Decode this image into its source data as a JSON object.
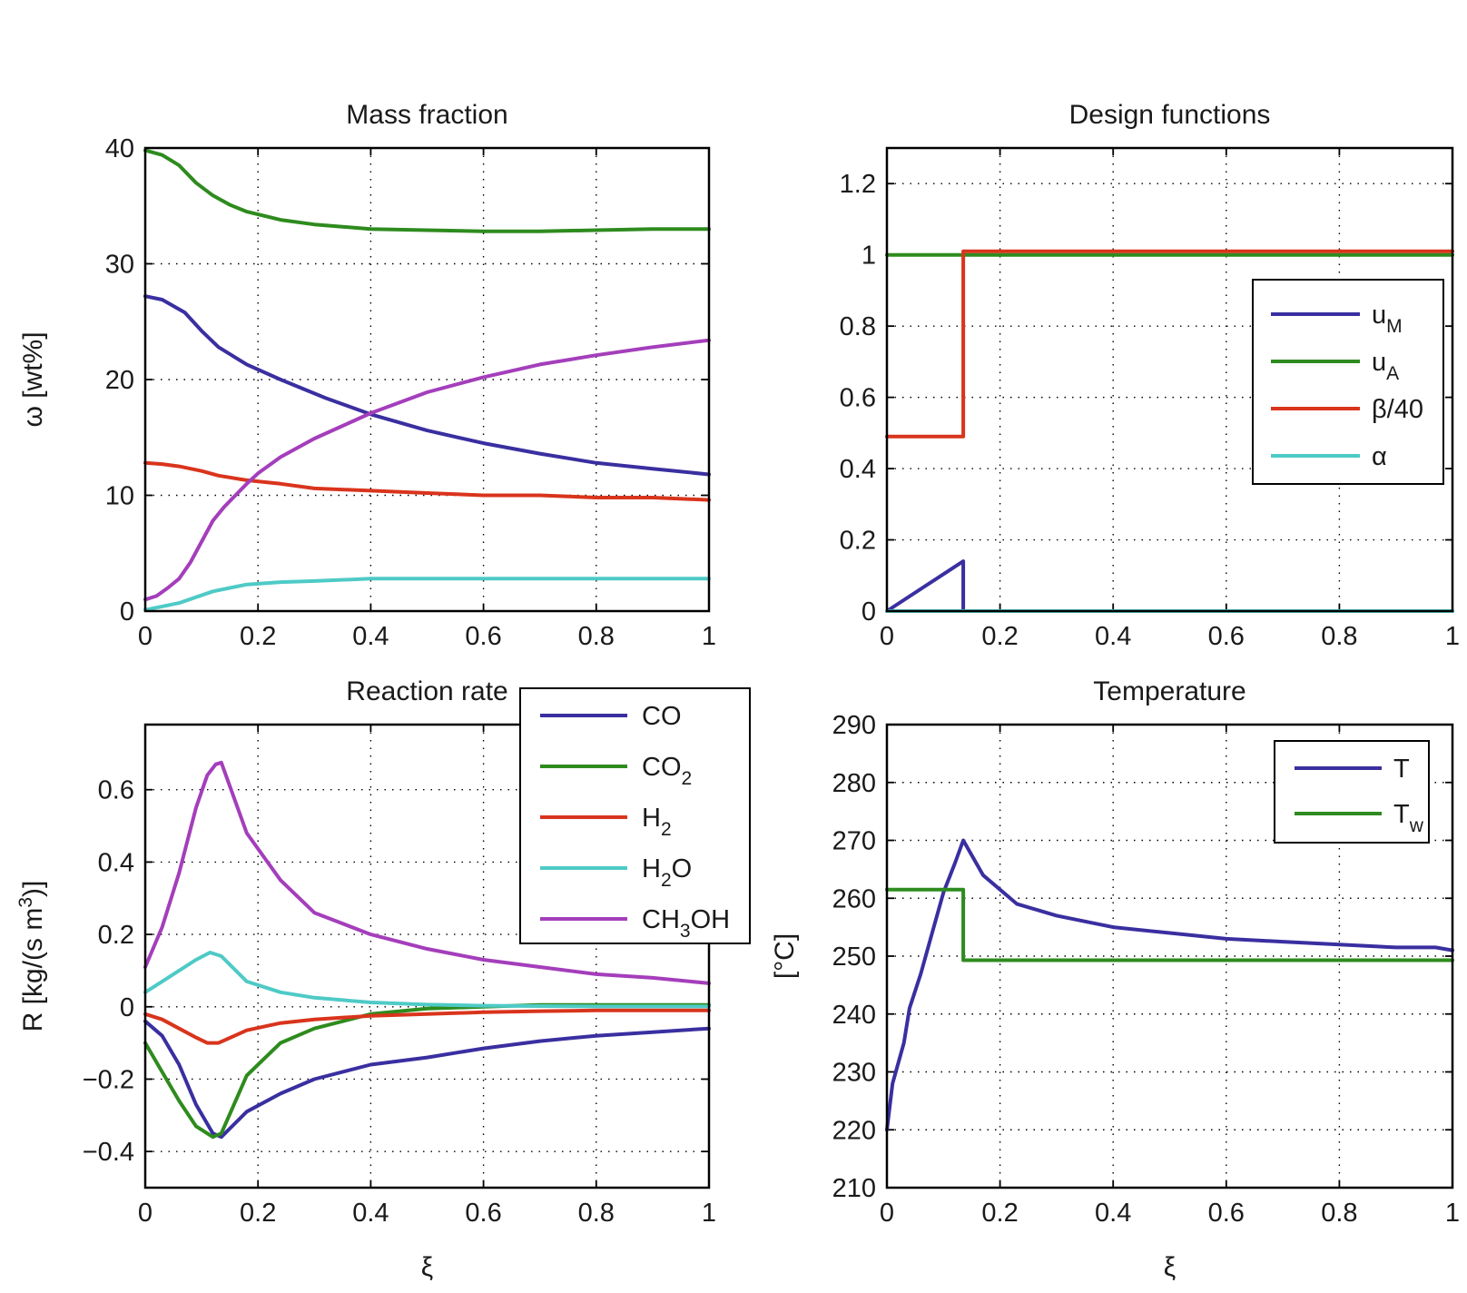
{
  "chart_data": [
    {
      "type": "line",
      "title": "Mass fraction",
      "xlabel": "",
      "ylabel": "ω [wt%]",
      "xlim": [
        0,
        1
      ],
      "ylim": [
        0,
        40
      ],
      "xticks": [
        "0",
        "0.2",
        "0.4",
        "0.6",
        "0.8",
        "1"
      ],
      "yticks": [
        "0",
        "10",
        "20",
        "30",
        "40"
      ],
      "grid": true,
      "legend": "none",
      "series": [
        {
          "color": "#3a2fa0",
          "x": [
            0,
            0.03,
            0.07,
            0.1,
            0.13,
            0.18,
            0.24,
            0.32,
            0.4,
            0.5,
            0.6,
            0.7,
            0.8,
            0.9,
            1.0
          ],
          "y": [
            27.2,
            26.9,
            25.8,
            24.2,
            22.8,
            21.3,
            20.0,
            18.4,
            17.0,
            15.6,
            14.5,
            13.6,
            12.8,
            12.3,
            11.8
          ]
        },
        {
          "color": "#2e8b1e",
          "x": [
            0,
            0.03,
            0.06,
            0.09,
            0.12,
            0.15,
            0.18,
            0.24,
            0.3,
            0.4,
            0.5,
            0.6,
            0.7,
            0.8,
            0.9,
            1.0
          ],
          "y": [
            39.8,
            39.4,
            38.5,
            37.0,
            35.9,
            35.1,
            34.5,
            33.8,
            33.4,
            33.0,
            32.9,
            32.8,
            32.8,
            32.9,
            33.0,
            33.0
          ]
        },
        {
          "color": "#d9341c",
          "x": [
            0,
            0.03,
            0.06,
            0.1,
            0.13,
            0.18,
            0.24,
            0.3,
            0.4,
            0.5,
            0.6,
            0.7,
            0.8,
            0.9,
            1.0
          ],
          "y": [
            12.8,
            12.7,
            12.5,
            12.1,
            11.7,
            11.3,
            11.0,
            10.6,
            10.4,
            10.2,
            10.0,
            10.0,
            9.8,
            9.8,
            9.6
          ]
        },
        {
          "color": "#4ecac6",
          "x": [
            0,
            0.03,
            0.06,
            0.09,
            0.12,
            0.15,
            0.18,
            0.24,
            0.3,
            0.4,
            0.5,
            0.6,
            0.7,
            0.8,
            0.9,
            1.0
          ],
          "y": [
            0.1,
            0.4,
            0.7,
            1.2,
            1.7,
            2.0,
            2.3,
            2.5,
            2.6,
            2.8,
            2.8,
            2.8,
            2.8,
            2.8,
            2.8,
            2.8
          ]
        },
        {
          "color": "#a43ebb",
          "x": [
            0,
            0.02,
            0.04,
            0.06,
            0.08,
            0.1,
            0.12,
            0.14,
            0.16,
            0.18,
            0.2,
            0.24,
            0.3,
            0.35,
            0.4,
            0.5,
            0.6,
            0.7,
            0.8,
            0.9,
            1.0
          ],
          "y": [
            1.0,
            1.3,
            2.0,
            2.8,
            4.2,
            6.0,
            7.8,
            9.0,
            10.0,
            11.0,
            11.9,
            13.3,
            14.9,
            16.0,
            17.1,
            18.9,
            20.2,
            21.3,
            22.1,
            22.8,
            23.4
          ]
        }
      ]
    },
    {
      "type": "line",
      "title": "Design functions",
      "xlabel": "",
      "ylabel": "",
      "xlim": [
        0,
        1
      ],
      "ylim": [
        0,
        1.3
      ],
      "xticks": [
        "0",
        "0.2",
        "0.4",
        "0.6",
        "0.8",
        "1"
      ],
      "yticks": [
        "0",
        "0.2",
        "0.4",
        "0.6",
        "0.8",
        "1",
        "1.2"
      ],
      "grid": true,
      "legend": "right",
      "series": [
        {
          "name": "u",
          "sub": "M",
          "color": "#3a2fa0",
          "x": [
            0,
            0.135,
            0.135,
            1.0
          ],
          "y": [
            0,
            0.14,
            0,
            0
          ]
        },
        {
          "name": "u",
          "sub": "A",
          "color": "#2e8b1e",
          "x": [
            0,
            1.0
          ],
          "y": [
            1.0,
            1.0
          ]
        },
        {
          "name": "β/40",
          "sub": "",
          "color": "#d9341c",
          "x": [
            0,
            0.135,
            0.135,
            1.0
          ],
          "y": [
            0.49,
            0.49,
            1.01,
            1.01
          ]
        },
        {
          "name": "α",
          "sub": "",
          "color": "#4ecac6",
          "x": [
            0,
            1.0
          ],
          "y": [
            0,
            0
          ]
        }
      ]
    },
    {
      "type": "line",
      "title": "Reaction rate",
      "xlabel": "ξ",
      "ylabel": "R [kg/(s m",
      "ylabel_sup": "3",
      "ylabel_end": ")]",
      "xlim": [
        0,
        1
      ],
      "ylim": [
        -0.5,
        0.78
      ],
      "xticks": [
        "0",
        "0.2",
        "0.4",
        "0.6",
        "0.8",
        "1"
      ],
      "yticks": [
        "−0.4",
        "−0.2",
        "0",
        "0.2",
        "0.4",
        "0.6"
      ],
      "ytick_values": [
        -0.4,
        -0.2,
        0,
        0.2,
        0.4,
        0.6
      ],
      "grid": true,
      "legend": "top-right",
      "series": [
        {
          "name": "CO",
          "sub": "",
          "tail": "",
          "color": "#3a2fa0",
          "x": [
            0,
            0.03,
            0.06,
            0.09,
            0.12,
            0.135,
            0.18,
            0.24,
            0.3,
            0.4,
            0.5,
            0.6,
            0.7,
            0.8,
            0.9,
            1.0
          ],
          "y": [
            -0.04,
            -0.08,
            -0.16,
            -0.27,
            -0.35,
            -0.36,
            -0.29,
            -0.24,
            -0.2,
            -0.16,
            -0.14,
            -0.115,
            -0.095,
            -0.08,
            -0.07,
            -0.06
          ]
        },
        {
          "name": "CO",
          "sub": "2",
          "tail": "",
          "color": "#2e8b1e",
          "x": [
            0,
            0.03,
            0.06,
            0.09,
            0.12,
            0.135,
            0.18,
            0.24,
            0.3,
            0.4,
            0.5,
            0.6,
            0.7,
            0.8,
            0.9,
            1.0
          ],
          "y": [
            -0.1,
            -0.18,
            -0.26,
            -0.33,
            -0.36,
            -0.35,
            -0.19,
            -0.1,
            -0.06,
            -0.02,
            -0.005,
            0.0,
            0.005,
            0.005,
            0.005,
            0.005
          ]
        },
        {
          "name": "H",
          "sub": "2",
          "tail": "",
          "color": "#d9341c",
          "x": [
            0,
            0.03,
            0.06,
            0.09,
            0.11,
            0.13,
            0.18,
            0.24,
            0.3,
            0.4,
            0.5,
            0.6,
            0.7,
            0.8,
            0.9,
            1.0
          ],
          "y": [
            -0.02,
            -0.035,
            -0.06,
            -0.085,
            -0.1,
            -0.1,
            -0.065,
            -0.045,
            -0.035,
            -0.025,
            -0.02,
            -0.015,
            -0.012,
            -0.01,
            -0.01,
            -0.01
          ]
        },
        {
          "name": "H",
          "sub": "2",
          "tail": "O",
          "color": "#4ecac6",
          "x": [
            0,
            0.03,
            0.06,
            0.09,
            0.115,
            0.135,
            0.18,
            0.24,
            0.3,
            0.4,
            0.5,
            0.6,
            0.7,
            0.8,
            0.9,
            1.0
          ],
          "y": [
            0.04,
            0.07,
            0.1,
            0.13,
            0.15,
            0.14,
            0.07,
            0.04,
            0.025,
            0.012,
            0.006,
            0.003,
            0.002,
            0.001,
            0.001,
            0.001
          ]
        },
        {
          "name": "CH",
          "sub": "3",
          "tail": "OH",
          "color": "#a43ebb",
          "x": [
            0,
            0.03,
            0.06,
            0.09,
            0.11,
            0.125,
            0.135,
            0.18,
            0.24,
            0.3,
            0.4,
            0.5,
            0.6,
            0.7,
            0.8,
            0.9,
            1.0
          ],
          "y": [
            0.11,
            0.22,
            0.37,
            0.55,
            0.64,
            0.67,
            0.675,
            0.48,
            0.35,
            0.26,
            0.2,
            0.16,
            0.13,
            0.11,
            0.09,
            0.08,
            0.065
          ]
        }
      ]
    },
    {
      "type": "line",
      "title": "Temperature",
      "xlabel": "ξ",
      "ylabel": "[°C]",
      "xlim": [
        0,
        1
      ],
      "ylim": [
        210,
        290
      ],
      "xticks": [
        "0",
        "0.2",
        "0.4",
        "0.6",
        "0.8",
        "1"
      ],
      "yticks": [
        "210",
        "220",
        "230",
        "240",
        "250",
        "260",
        "270",
        "280",
        "290"
      ],
      "grid": true,
      "legend": "top-right",
      "series": [
        {
          "name": "T",
          "sub": "",
          "color": "#3a2fa0",
          "x": [
            0,
            0.01,
            0.03,
            0.04,
            0.06,
            0.08,
            0.1,
            0.12,
            0.135,
            0.17,
            0.23,
            0.3,
            0.4,
            0.5,
            0.6,
            0.7,
            0.8,
            0.9,
            0.97,
            1.0
          ],
          "y": [
            220,
            228,
            235,
            241,
            247,
            254,
            261,
            266,
            270,
            264,
            259,
            257,
            255,
            254,
            253,
            252.5,
            252,
            251.5,
            251.5,
            251
          ]
        },
        {
          "name": "T",
          "sub": "w",
          "color": "#2e8b1e",
          "x": [
            0,
            0.135,
            0.135,
            1.0
          ],
          "y": [
            261.5,
            261.5,
            249.3,
            249.3
          ]
        }
      ]
    }
  ]
}
